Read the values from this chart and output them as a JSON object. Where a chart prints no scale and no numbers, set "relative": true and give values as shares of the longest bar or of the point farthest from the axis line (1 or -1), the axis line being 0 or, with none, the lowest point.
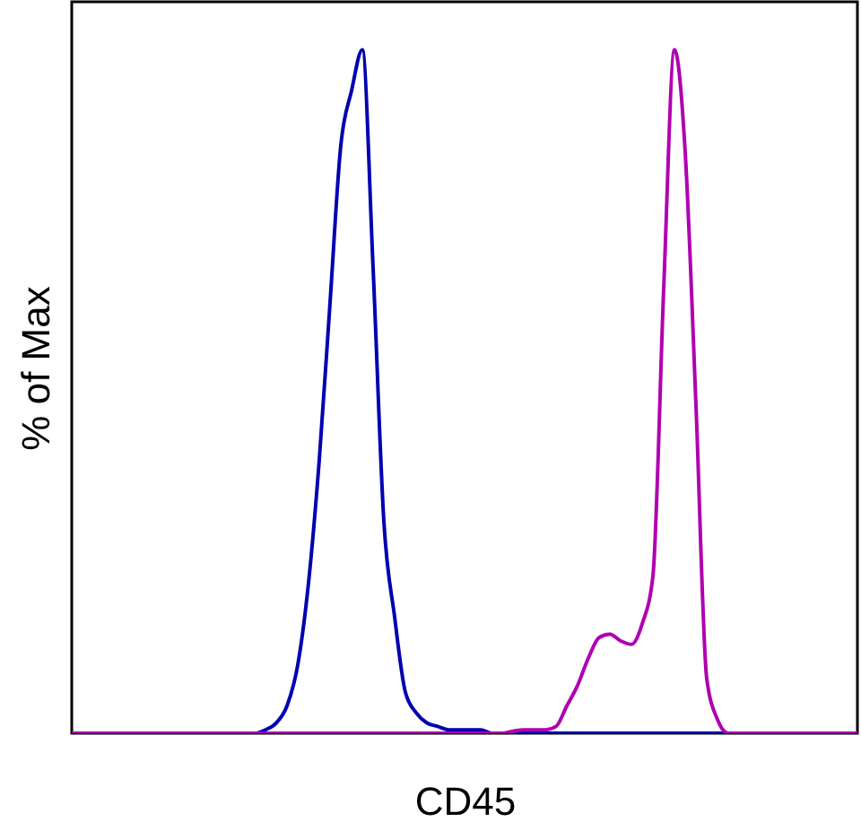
{
  "chart_data": {
    "type": "line",
    "relative": true,
    "xlabel": "CD45",
    "ylabel": "% of Max",
    "categories": [
      null,
      null,
      null,
      null,
      null,
      null,
      null,
      null,
      null,
      null,
      null,
      null,
      null,
      null,
      null,
      null,
      null,
      null,
      null,
      null,
      null,
      null,
      null,
      null,
      null,
      null,
      null,
      null,
      null,
      null,
      null,
      null,
      null,
      null,
      null,
      null,
      null,
      null,
      null,
      null,
      null,
      null,
      null,
      null,
      null,
      null,
      null,
      null,
      null,
      null,
      null,
      null,
      null,
      null,
      null,
      null,
      null,
      null,
      null,
      null,
      null,
      null,
      null,
      null,
      null,
      null,
      null,
      null,
      null,
      null,
      null,
      null,
      null,
      null
    ],
    "series": [
      {
        "color": "#0000b0",
        "values": [
          null,
          null,
          null,
          null,
          null,
          null,
          null,
          null,
          null,
          null,
          null,
          null,
          null,
          null,
          null,
          null,
          0,
          0,
          0.005,
          0.015,
          0.04,
          0.1,
          0.22,
          0.4,
          0.63,
          0.86,
          0.94,
          1,
          0.68,
          0.31,
          0.17,
          0.06,
          0.03,
          0.015,
          0.01,
          0.005,
          0.005,
          0.005,
          0.005,
          0,
          0,
          0,
          0,
          0,
          0,
          0,
          0,
          0,
          0,
          0,
          0,
          0,
          0,
          0,
          0,
          0,
          0,
          0,
          0,
          0,
          0,
          0,
          0,
          null,
          null,
          null,
          null,
          null,
          null,
          null,
          null,
          null,
          null,
          null
        ]
      },
      {
        "color": "#b000b0",
        "values": [
          0,
          0,
          0,
          0,
          0,
          0,
          0,
          0,
          0,
          0,
          0,
          0,
          0,
          0,
          0,
          0,
          0,
          0,
          0,
          0,
          0,
          0,
          0,
          0,
          0,
          0,
          0,
          0,
          0,
          0,
          0,
          0,
          0,
          0,
          0,
          0,
          0,
          0,
          0,
          0,
          0,
          0.003,
          0.005,
          0.005,
          0.005,
          0.01,
          0.04,
          0.07,
          0.11,
          0.14,
          0.145,
          0.135,
          0.13,
          0.16,
          0.23,
          0.65,
          1,
          0.85,
          0.48,
          0.08,
          0.02,
          0,
          0,
          0,
          0,
          0,
          0,
          0,
          0,
          0,
          0,
          0,
          0,
          0
        ]
      }
    ]
  }
}
